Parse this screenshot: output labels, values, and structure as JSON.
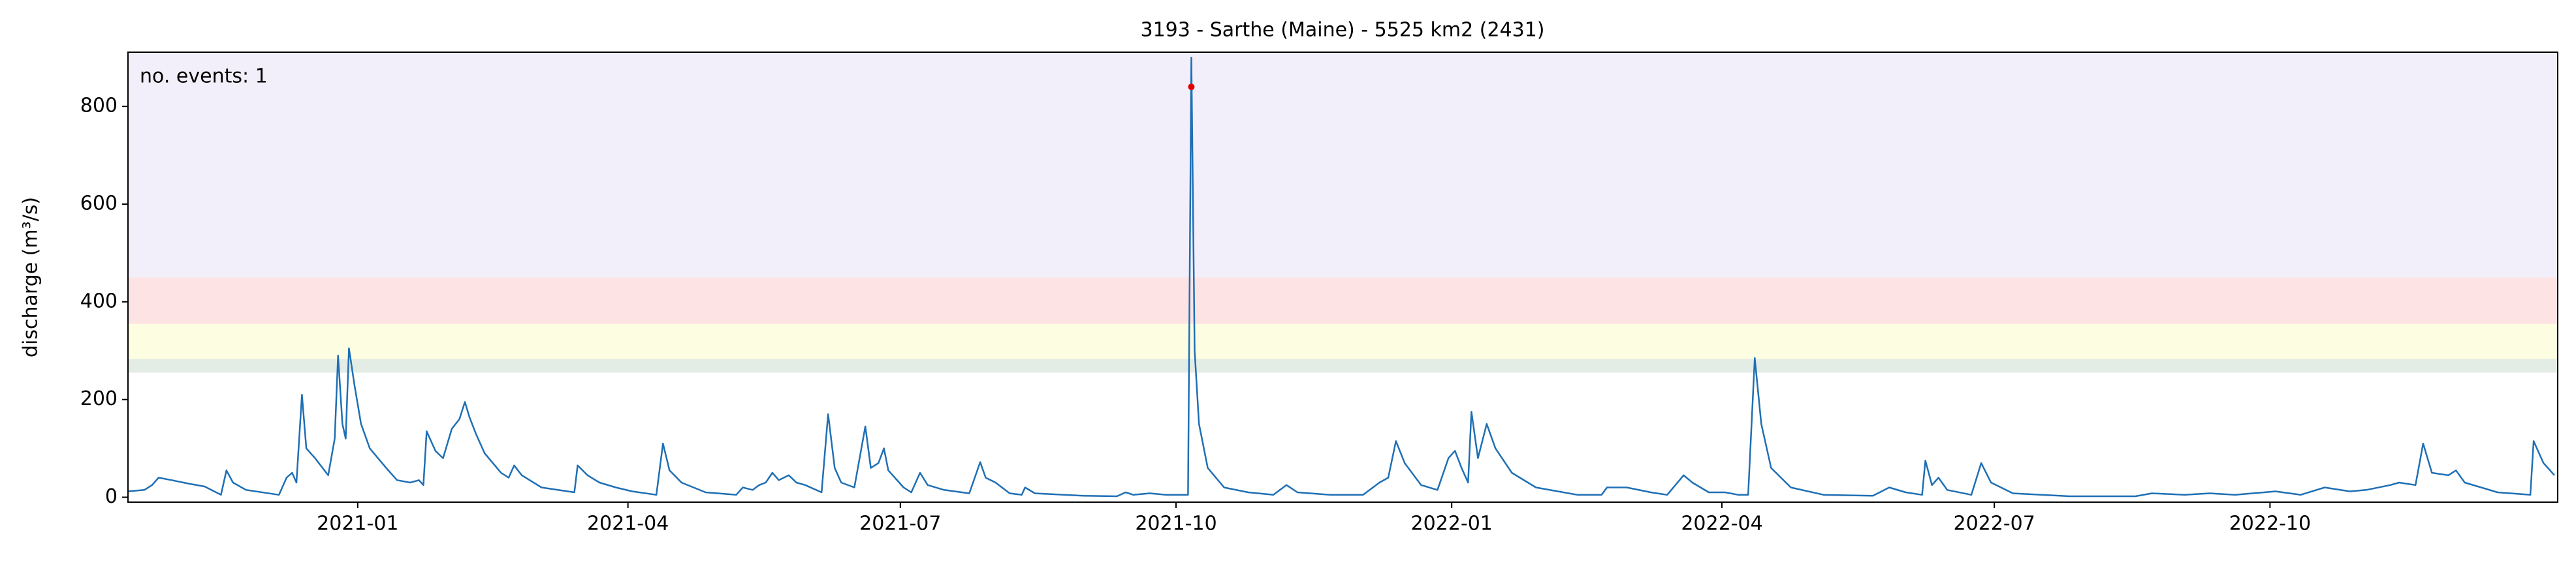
{
  "chart_data": {
    "type": "line",
    "title": "3193 - Sarthe (Maine) - 5525 km2 (2431)",
    "y_label": "discharge (m³/s)",
    "annotation": "no. events: 1",
    "annotation_color": "#e00000",
    "color": "#1f6fb4",
    "x": [
      2020.79,
      2020.805,
      2020.812,
      2020.818,
      2020.83,
      2020.845,
      2020.86,
      2020.875,
      2020.88,
      2020.886,
      2020.898,
      2020.928,
      2020.935,
      2020.94,
      2020.944,
      2020.949,
      2020.953,
      2020.961,
      2020.973,
      2020.979,
      2020.982,
      2020.986,
      2020.989,
      2020.992,
      2020.997,
      2021.003,
      2021.011,
      2021.026,
      2021.036,
      2021.048,
      2021.056,
      2021.06,
      2021.063,
      2021.071,
      2021.078,
      2021.086,
      2021.093,
      2021.098,
      2021.102,
      2021.108,
      2021.116,
      2021.131,
      2021.138,
      2021.143,
      2021.15,
      2021.168,
      2021.198,
      2021.201,
      2021.21,
      2021.221,
      2021.236,
      2021.251,
      2021.273,
      2021.279,
      2021.285,
      2021.296,
      2021.318,
      2021.346,
      2021.352,
      2021.361,
      2021.367,
      2021.373,
      2021.379,
      2021.385,
      2021.394,
      2021.401,
      2021.409,
      2021.424,
      2021.43,
      2021.436,
      2021.442,
      2021.454,
      2021.464,
      2021.469,
      2021.476,
      2021.481,
      2021.485,
      2021.491,
      2021.499,
      2021.506,
      2021.514,
      2021.521,
      2021.536,
      2021.559,
      2021.569,
      2021.574,
      2021.583,
      2021.596,
      2021.607,
      2021.61,
      2021.619,
      2021.664,
      2021.694,
      2021.702,
      2021.709,
      2021.724,
      2021.739,
      2021.759,
      2021.762,
      2021.765,
      2021.769,
      2021.777,
      2021.792,
      2021.814,
      2021.837,
      2021.849,
      2021.859,
      2021.889,
      2021.919,
      2021.934,
      2021.942,
      2021.949,
      2021.957,
      2021.972,
      2021.987,
      2021.997,
      2022.003,
      2022.009,
      2022.015,
      2022.018,
      2022.024,
      2022.032,
      2022.04,
      2022.055,
      2022.077,
      2022.115,
      2022.137,
      2022.142,
      2022.16,
      2022.182,
      2022.197,
      2022.212,
      2022.22,
      2022.235,
      2022.25,
      2022.262,
      2022.271,
      2022.277,
      2022.283,
      2022.292,
      2022.31,
      2022.34,
      2022.385,
      2022.4,
      2022.415,
      2022.43,
      2022.433,
      2022.439,
      2022.445,
      2022.453,
      2022.475,
      2022.484,
      2022.493,
      2022.513,
      2022.565,
      2022.625,
      2022.64,
      2022.67,
      2022.693,
      2022.716,
      2022.753,
      2022.776,
      2022.798,
      2022.821,
      2022.836,
      2022.858,
      2022.866,
      2022.881,
      2022.888,
      2022.896,
      2022.911,
      2022.918,
      2022.926,
      2022.956,
      2022.986,
      2022.989,
      2022.998,
      2023.008
    ],
    "values": [
      12,
      15,
      25,
      40,
      35,
      28,
      22,
      5,
      55,
      30,
      15,
      5,
      40,
      50,
      30,
      210,
      100,
      80,
      45,
      120,
      290,
      150,
      120,
      305,
      230,
      150,
      100,
      60,
      35,
      30,
      35,
      25,
      135,
      95,
      80,
      140,
      160,
      195,
      165,
      130,
      90,
      50,
      40,
      65,
      45,
      20,
      10,
      65,
      45,
      30,
      20,
      12,
      5,
      110,
      55,
      30,
      10,
      5,
      20,
      15,
      25,
      30,
      50,
      35,
      45,
      30,
      25,
      10,
      170,
      60,
      30,
      20,
      145,
      60,
      70,
      100,
      55,
      40,
      20,
      10,
      50,
      25,
      15,
      8,
      72,
      40,
      30,
      8,
      5,
      20,
      8,
      3,
      2,
      10,
      5,
      8,
      5,
      5,
      900,
      300,
      150,
      60,
      20,
      10,
      5,
      25,
      10,
      5,
      5,
      30,
      40,
      115,
      70,
      25,
      15,
      80,
      95,
      60,
      30,
      175,
      80,
      150,
      100,
      50,
      20,
      5,
      5,
      20,
      20,
      10,
      5,
      45,
      30,
      10,
      10,
      5,
      5,
      285,
      150,
      60,
      20,
      5,
      3,
      20,
      10,
      5,
      75,
      25,
      40,
      15,
      5,
      70,
      30,
      8,
      2,
      2,
      8,
      5,
      8,
      5,
      12,
      5,
      20,
      12,
      15,
      25,
      30,
      25,
      110,
      50,
      45,
      55,
      30,
      10,
      5,
      115,
      70,
      45
    ],
    "events": {
      "x": [
        2021.762
      ],
      "values": [
        840
      ],
      "color": "#e00000"
    },
    "bands": [
      {
        "range": [
          255,
          283
        ],
        "color": "#e4ece6"
      },
      {
        "range": [
          283,
          355
        ],
        "color": "#fdfde1"
      },
      {
        "range": [
          355,
          450
        ],
        "color": "#fde3e4"
      },
      {
        "range": [
          450,
          911
        ],
        "color": "#f2effa"
      }
    ],
    "xlim": [
      2020.79,
      2023.011
    ],
    "ylim": [
      -10,
      911
    ],
    "xticks": [
      {
        "value": 2021.0,
        "label": "2021-01"
      },
      {
        "value": 2021.247,
        "label": "2021-04"
      },
      {
        "value": 2021.496,
        "label": "2021-07"
      },
      {
        "value": 2021.748,
        "label": "2021-10"
      },
      {
        "value": 2022.0,
        "label": "2022-01"
      },
      {
        "value": 2022.247,
        "label": "2022-04"
      },
      {
        "value": 2022.496,
        "label": "2022-07"
      },
      {
        "value": 2022.748,
        "label": "2022-10"
      }
    ],
    "yticks": [
      0,
      200,
      400,
      600,
      800
    ]
  }
}
